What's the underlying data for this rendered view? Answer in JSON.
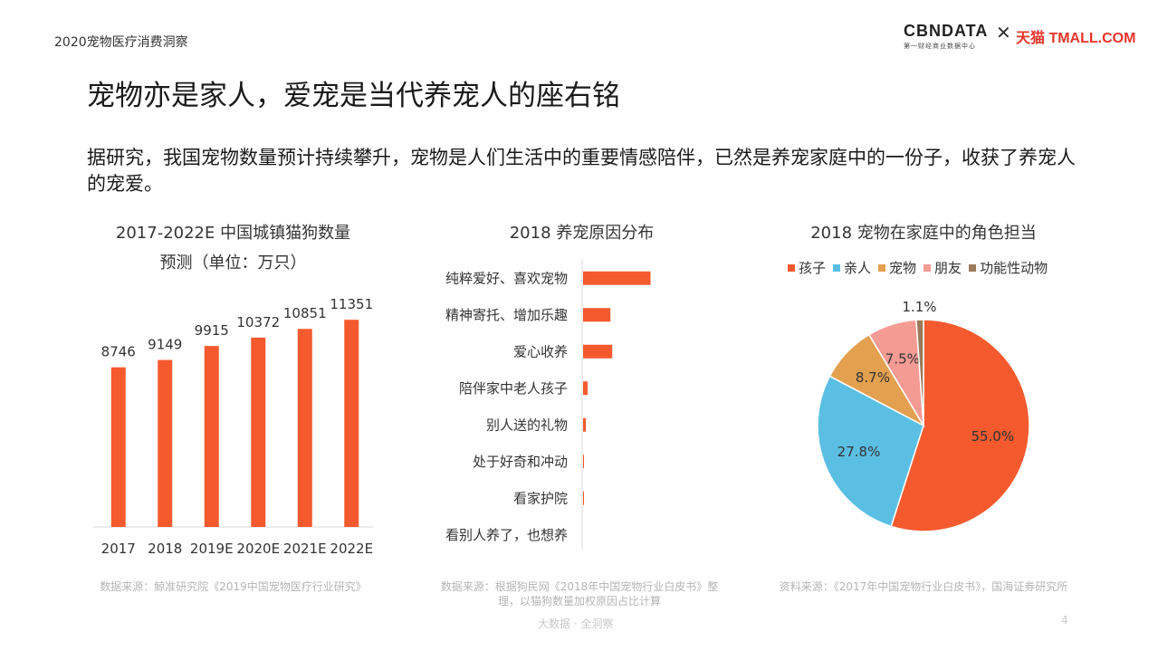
{
  "header": {
    "title": "2020宠物医疗消费洞察"
  },
  "logos": {
    "cbndata": "CBNDATA",
    "cbndata_sub": "第一财经商业数据中心",
    "cross": "✕",
    "tmall": "天猫 TMALL.COM"
  },
  "main": {
    "title": "宠物亦是家人，爱宠是当代养宠人的座右铭",
    "intro": "据研究，我国宠物数量预计持续攀升，宠物是人们生活中的重要情感陪伴，已然是养宠家庭中的一份子，收获了养宠人的宠爱。"
  },
  "colors": {
    "orange": "#f45a2e",
    "blue": "#5bbfe3",
    "gold": "#e3a04f",
    "pink": "#f49b94",
    "brown": "#9b7a5a"
  },
  "chart_data": [
    {
      "type": "bar",
      "title": "2017-2022E 中国城镇猫狗数量",
      "subtitle": "预测（单位：万只）",
      "categories": [
        "2017",
        "2018",
        "2019E",
        "2020E",
        "2021E",
        "2022E"
      ],
      "values": [
        8746,
        9149,
        9915,
        10372,
        10851,
        11351
      ],
      "value_labels": [
        "8746",
        "9149",
        "9915",
        "10372",
        "10851",
        "11351"
      ],
      "ylim": [
        0,
        12500
      ],
      "source": "数据来源：鲸准研究院《2019中国宠物医疗行业研究》"
    },
    {
      "type": "bar",
      "orientation": "horizontal",
      "title": "2018 养宠原因分布",
      "categories": [
        "纯粹爱好、喜欢宠物",
        "精神寄托、增加乐趣",
        "爱心收养",
        "陪伴家中老人孩子",
        "别人送的礼物",
        "处于好奇和冲动",
        "看家护院",
        "看别人养了，也想养"
      ],
      "values": [
        74,
        30,
        32,
        5,
        3,
        1,
        1,
        0
      ],
      "source": "数据来源：根据狗民网《2018年中国宠物行业白皮书》整理，以猫狗数量加权原因占比计算"
    },
    {
      "type": "pie",
      "title": "2018 宠物在家庭中的角色担当",
      "categories": [
        "孩子",
        "亲人",
        "宠物",
        "朋友",
        "功能性动物"
      ],
      "values": [
        55.0,
        27.8,
        8.7,
        7.5,
        1.1
      ],
      "value_labels": [
        "55.0%",
        "27.8%",
        "8.7%",
        "7.5%",
        "1.1%"
      ],
      "legend_position": "top",
      "source": "资料来源：《2017年中国宠物行业白皮书》，国海证券研究所"
    }
  ],
  "footer": {
    "text": "大数据 · 全洞察",
    "page": "4"
  }
}
